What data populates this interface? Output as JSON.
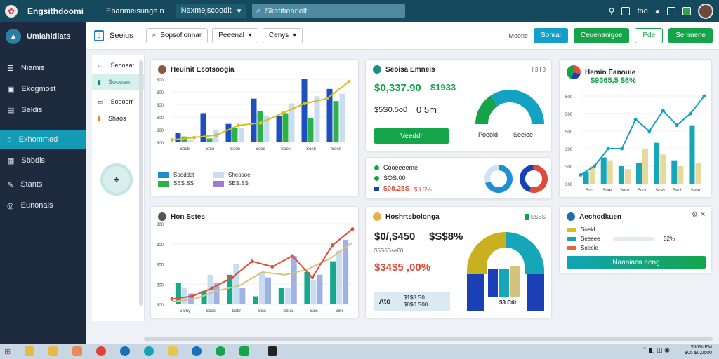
{
  "topbar": {
    "brand": "Engsithdoomi",
    "nav": "Ebanmeisunge n",
    "dropdown": "Nexmejscoodit",
    "search_placeholder": "Sketitieanelt",
    "icon_text": "fno"
  },
  "sidebar": {
    "brand": "Umlahidiats",
    "items": [
      {
        "label": "Niamis",
        "icon": "list-icon"
      },
      {
        "label": "Ekogmost",
        "icon": "inbox-icon"
      },
      {
        "label": "Seldis",
        "icon": "table-icon"
      },
      {
        "label": "Exhommed",
        "icon": "home-icon"
      },
      {
        "label": "Sbbdis",
        "icon": "grid-icon"
      },
      {
        "label": "Stants",
        "icon": "tools-icon"
      },
      {
        "label": "Eunonais",
        "icon": "globe-icon"
      }
    ],
    "active_index": 3
  },
  "subbar": {
    "title": "Seeius",
    "btn1": "Sopsofionnar",
    "btn2": "Peeenal",
    "btn3": "Cenys",
    "label": "Meene",
    "actions": [
      "Sonrai",
      "Ceuenanigoe",
      "Pde",
      "Senmene"
    ]
  },
  "subpanel": {
    "items": [
      {
        "label": "Seooaat"
      },
      {
        "label": "Soooan"
      },
      {
        "label": "Soooerr"
      },
      {
        "label": "Shaos"
      }
    ],
    "active_index": 1
  },
  "card1": {
    "title": "Heuinit Ecotsoogia",
    "legend": [
      {
        "label": "Sooddst",
        "color": "#1a8fd0"
      },
      {
        "label": "Sheosoe",
        "color": "#c9dcf0"
      },
      {
        "label": "SES.SS",
        "color": "#2bb34a"
      },
      {
        "label": "SES.SS",
        "color": "#9a7fd1"
      }
    ],
    "chart_data": {
      "type": "bar",
      "ylabels": [
        "300",
        "300",
        "300",
        "300",
        "300",
        "300"
      ],
      "categories": [
        "Sasb",
        "Soto",
        "Sodo",
        "Sodo",
        "Sook",
        "Sosb",
        "Sooe"
      ],
      "series": [
        {
          "values": [
            20,
            60,
            38,
            90,
            55,
            130,
            110
          ],
          "color": "#1e4fbf"
        },
        {
          "values": [
            12,
            8,
            30,
            65,
            60,
            50,
            85
          ],
          "color": "#2bb34a"
        },
        {
          "values": [
            5,
            25,
            30,
            55,
            80,
            95,
            100
          ],
          "color": "#c9dcf0"
        }
      ],
      "line": [
        5,
        10,
        15,
        35,
        40,
        60,
        80,
        90,
        125
      ],
      "line_color": "#d4c021",
      "ymax": 130
    }
  },
  "card2": {
    "title": "Seoisa Emneis",
    "top_right": "l 3 l 3",
    "big": "$0,337.90",
    "big2": "$1933",
    "sub1": "$5S0.5o0",
    "sub2": "0 5m",
    "button": "Veeddr",
    "gauge_labels": [
      "Poeoid",
      "Seeiee"
    ],
    "gauge": {
      "value": 0.62,
      "color1": "#15a34a",
      "color2": "#12a3c4"
    }
  },
  "card3": {
    "items": [
      {
        "label": "Cooeeeeme"
      },
      {
        "label": "SOS.00"
      }
    ],
    "value": "$08.25S",
    "value2": "$3.6%",
    "donut1": {
      "value": 0.7,
      "color": "#1d8fd6"
    },
    "donut2": {
      "value": 0.55,
      "color1": "#1b3fb5",
      "color2": "#e04b3b"
    }
  },
  "card4": {
    "title": "Hemin Eanouie",
    "value": "$9365,5 $6%",
    "chart_data": {
      "type": "bar",
      "ylabels": [
        "500",
        "500",
        "500",
        "300",
        "300",
        "300"
      ],
      "categories": [
        "Sco",
        "Sore",
        "Sook",
        "Sood",
        "Suas",
        "Seob",
        "Saso"
      ],
      "series": [
        {
          "values": [
            20,
            45,
            30,
            35,
            70,
            40,
            100
          ],
          "color": "#15a7b8"
        },
        {
          "values": [
            30,
            40,
            25,
            60,
            50,
            30,
            35
          ],
          "color": "#e6d99a"
        }
      ],
      "line": [
        15,
        30,
        60,
        60,
        110,
        90,
        125,
        100,
        120,
        150
      ],
      "line_color": "#13a2c4",
      "ymax": 150
    }
  },
  "card5": {
    "title": "Hon Sstes",
    "chart_data": {
      "type": "bar",
      "ylabels": [
        "300",
        "300",
        "300",
        "300",
        "300"
      ],
      "categories": [
        "Samy",
        "Soso",
        "Sabr",
        "Siss",
        "Sbua",
        "Saic",
        "Sibs"
      ],
      "series": [
        {
          "values": [
            40,
            25,
            55,
            15,
            30,
            60,
            80
          ],
          "color": "#15a88b"
        },
        {
          "values": [
            30,
            55,
            75,
            60,
            30,
            45,
            100
          ],
          "color": "#c9dcf0"
        },
        {
          "values": [
            20,
            40,
            30,
            50,
            90,
            55,
            120
          ],
          "color": "#9fb2e8"
        }
      ],
      "line": [
        10,
        15,
        30,
        50,
        80,
        70,
        90,
        50,
        110,
        140
      ],
      "line_color": "#e04b3b",
      "line2": [
        5,
        10,
        25,
        35,
        60,
        55,
        65,
        85,
        115
      ],
      "line2_color": "#d4c37a",
      "ymax": 150
    }
  },
  "card6": {
    "title": "Hoshrtsbolonga",
    "top_right": "SSSS",
    "big": "$0/,$450",
    "big2": "$S$8%",
    "sub": "$5S6Sse00",
    "red": "$34$5 ,00%",
    "badge1": "Ato",
    "badge2": "$1$8 S0",
    "badge3": "$0$0 S00",
    "chart_label": "$3 Ctit"
  },
  "card7": {
    "title": "Aechodkuen",
    "rows": [
      {
        "label": "Soeld",
        "color": "#d4c021",
        "pct": 0.3
      },
      {
        "label": "Seeeee",
        "color": "#15a3b8",
        "pct": 0.7
      },
      {
        "label": "Soeeie",
        "color": "#e0673b",
        "pct": 0.15
      }
    ],
    "pct_label": "52%",
    "button": "Naaniaca eeng"
  },
  "taskbar": {
    "time": "$50% PM",
    "date": "$05 $0,0500"
  }
}
